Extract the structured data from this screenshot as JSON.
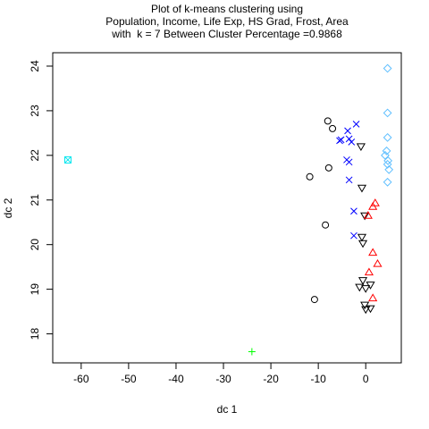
{
  "chart_data": {
    "type": "scatter",
    "title": "Plot of k-means clustering using",
    "title_lines": [
      "Plot of k-means clustering using",
      "Population, Income, Life Exp, HS Grad, Frost, Area",
      "with  k = 7 Between Cluster Percentage =0.9868"
    ],
    "xlabel": "dc 1",
    "ylabel": "dc 2",
    "xlim": [
      -66,
      7.5
    ],
    "ylim": [
      17.35,
      24.3
    ],
    "x_ticks": [
      -60,
      -50,
      -40,
      -30,
      -20,
      -10,
      0
    ],
    "y_ticks": [
      18,
      19,
      20,
      21,
      22,
      23,
      24
    ],
    "x_tick_labels": [
      "-60",
      "-50",
      "-40",
      "-30",
      "-20",
      "-10",
      "0"
    ],
    "y_tick_labels": [
      "18",
      "19",
      "20",
      "21",
      "22",
      "23",
      "24"
    ],
    "grid": false,
    "series": [
      {
        "marker": "circle",
        "color": "#000000",
        "points": [
          [
            -8,
            22.77
          ],
          [
            -7,
            22.6
          ],
          [
            -7.8,
            21.72
          ],
          [
            -11.8,
            21.52
          ],
          [
            -8.5,
            20.44
          ],
          [
            -10.8,
            18.77
          ]
        ]
      },
      {
        "marker": "triangle-down",
        "color": "#000000",
        "points": [
          [
            -1,
            22.2
          ],
          [
            -0.8,
            21.27
          ],
          [
            -0.2,
            20.65
          ],
          [
            -0.8,
            20.17
          ],
          [
            -0.6,
            20.03
          ],
          [
            -0.6,
            19.2
          ],
          [
            -1.3,
            19.05
          ],
          [
            0,
            19.02
          ],
          [
            1,
            19.1
          ],
          [
            -0.2,
            18.65
          ],
          [
            0,
            18.55
          ],
          [
            1,
            18.57
          ]
        ]
      },
      {
        "marker": "triangle-up",
        "color": "#ff0000",
        "points": [
          [
            2,
            20.93
          ],
          [
            1.5,
            20.85
          ],
          [
            0.5,
            20.65
          ],
          [
            1.5,
            19.82
          ],
          [
            2.5,
            19.57
          ],
          [
            0.7,
            19.38
          ],
          [
            1.5,
            18.8
          ]
        ]
      },
      {
        "marker": "plus",
        "color": "#00ff00",
        "points": [
          [
            -24,
            17.6
          ]
        ]
      },
      {
        "marker": "x",
        "color": "#0000ff",
        "points": [
          [
            -2,
            22.7
          ],
          [
            -3.8,
            22.55
          ],
          [
            -3.5,
            22.37
          ],
          [
            -5.5,
            22.33
          ],
          [
            -3,
            22.3
          ],
          [
            -5.2,
            22.35
          ],
          [
            -4,
            21.9
          ],
          [
            -3.5,
            21.85
          ],
          [
            -3.5,
            21.45
          ],
          [
            -2.5,
            20.75
          ],
          [
            -2.5,
            20.2
          ]
        ]
      },
      {
        "marker": "diamond",
        "color": "#5fbfff",
        "points": [
          [
            4.6,
            23.95
          ],
          [
            4.6,
            22.95
          ],
          [
            4.6,
            22.4
          ],
          [
            4.4,
            22.1
          ],
          [
            4.1,
            22
          ],
          [
            4.7,
            21.88
          ],
          [
            4.6,
            21.8
          ],
          [
            4.9,
            21.68
          ],
          [
            4.6,
            21.4
          ]
        ]
      },
      {
        "marker": "square-x",
        "color": "#00e5ee",
        "points": [
          [
            -62.8,
            21.9
          ]
        ]
      }
    ]
  }
}
